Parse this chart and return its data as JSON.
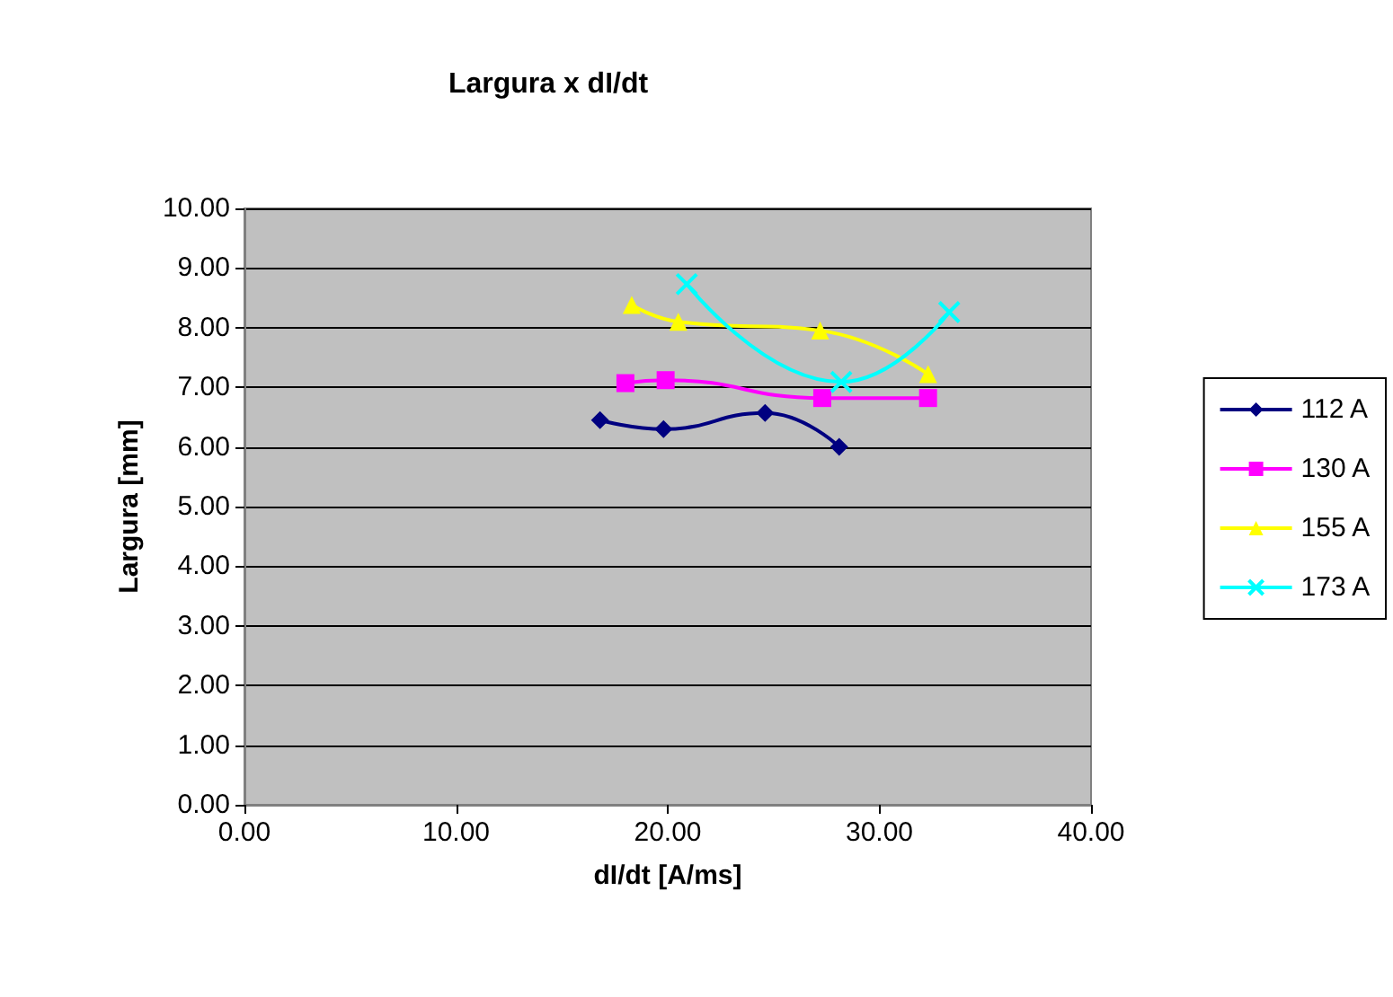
{
  "chart_data": {
    "type": "line",
    "title": "Largura x dI/dt",
    "xlabel": "dI/dt [A/ms]",
    "ylabel": "Largura [mm]",
    "xlim": [
      0,
      40
    ],
    "xticks": [
      {
        "value": 0,
        "label": "0.00"
      },
      {
        "value": 10,
        "label": "10.00"
      },
      {
        "value": 20,
        "label": "20.00"
      },
      {
        "value": 30,
        "label": "30.00"
      },
      {
        "value": 40,
        "label": "40.00"
      }
    ],
    "ylim": [
      0,
      10
    ],
    "yticks": [
      {
        "value": 0,
        "label": "0.00"
      },
      {
        "value": 1,
        "label": "1.00"
      },
      {
        "value": 2,
        "label": "2.00"
      },
      {
        "value": 3,
        "label": "3.00"
      },
      {
        "value": 4,
        "label": "4.00"
      },
      {
        "value": 5,
        "label": "5.00"
      },
      {
        "value": 6,
        "label": "6.00"
      },
      {
        "value": 7,
        "label": "7.00"
      },
      {
        "value": 8,
        "label": "8.00"
      },
      {
        "value": 9,
        "label": "9.00"
      },
      {
        "value": 10,
        "label": "10.00"
      }
    ],
    "grid": "y",
    "legend": "right",
    "series": [
      {
        "name": "112 A",
        "color": "#000080",
        "marker": "diamond",
        "x": [
          16.8,
          19.8,
          24.6,
          28.1
        ],
        "values": [
          6.45,
          6.3,
          6.57,
          6.0
        ]
      },
      {
        "name": "130 A",
        "color": "#ff00ff",
        "marker": "square",
        "x": [
          18.0,
          19.9,
          27.3,
          32.3
        ],
        "values": [
          7.07,
          7.12,
          6.82,
          6.82
        ]
      },
      {
        "name": "155 A",
        "color": "#ffff00",
        "marker": "triangle",
        "x": [
          18.3,
          20.5,
          27.2,
          32.3
        ],
        "values": [
          8.38,
          8.1,
          7.95,
          7.22
        ]
      },
      {
        "name": "173 A",
        "color": "#00ffff",
        "marker": "cross",
        "x": [
          20.9,
          28.2,
          33.3
        ],
        "values": [
          8.73,
          7.09,
          8.26
        ]
      }
    ]
  }
}
